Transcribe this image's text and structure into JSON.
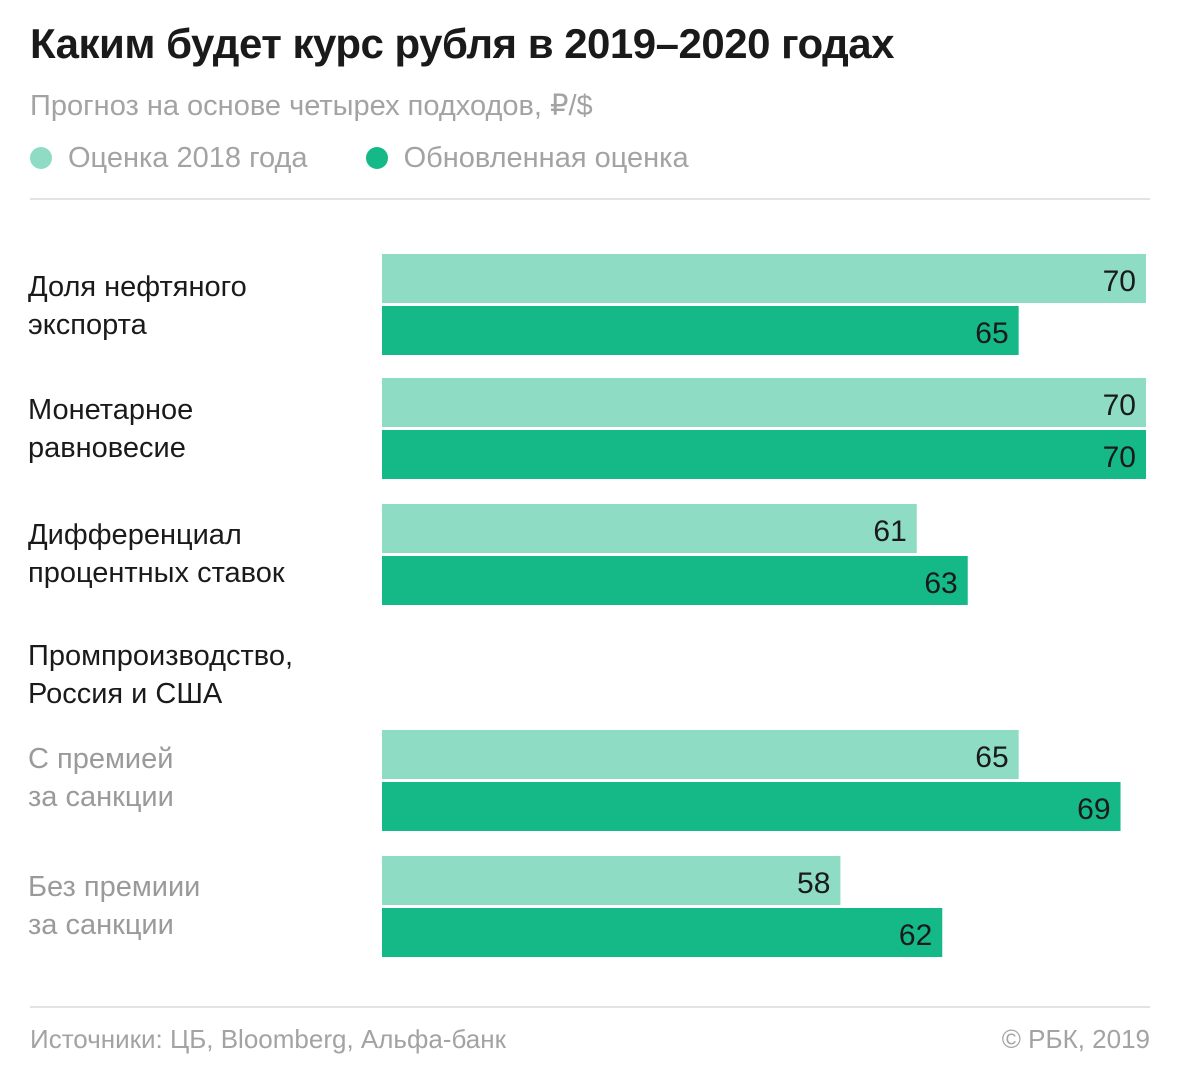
{
  "title": "Каким будет курс рубля в 2019–2020 годах",
  "subtitle": "Прогноз на основе четырех подходов, ₽/$",
  "legend": [
    {
      "label": "Оценка 2018 года",
      "color": "#8ddcc3"
    },
    {
      "label": "Обновленная оценка",
      "color": "#15b887"
    }
  ],
  "chart_data": {
    "type": "bar",
    "orientation": "horizontal",
    "categories": [
      {
        "label_line1": "Доля нефтяного",
        "label_line2": "экспорта",
        "subcategory": false
      },
      {
        "label_line1": "Монетарное",
        "label_line2": "равновесие",
        "subcategory": false
      },
      {
        "label_line1": "Дифференциал",
        "label_line2": "процентных ставок",
        "subcategory": false
      },
      {
        "label_line1": "С премией",
        "label_line2": "за санкции",
        "subcategory": true
      },
      {
        "label_line1": "Без премиии",
        "label_line2": "за санкции",
        "subcategory": true
      }
    ],
    "group_heading": {
      "label_line1": "Промпроизводство,",
      "label_line2": "Россия и США"
    },
    "series": [
      {
        "name": "Оценка 2018 года",
        "values": [
          70,
          70,
          61,
          65,
          58
        ],
        "color": "#8ddcc3"
      },
      {
        "name": "Обновленная оценка",
        "values": [
          65,
          70,
          63,
          69,
          62
        ],
        "color": "#15b887"
      }
    ],
    "xlim": [
      40,
      70
    ],
    "grid": false,
    "legend_position": "top-left"
  },
  "footer": {
    "source": "Источники: ЦБ, Bloomberg, Альфа-банк",
    "copyright": "© РБК, 2019"
  }
}
